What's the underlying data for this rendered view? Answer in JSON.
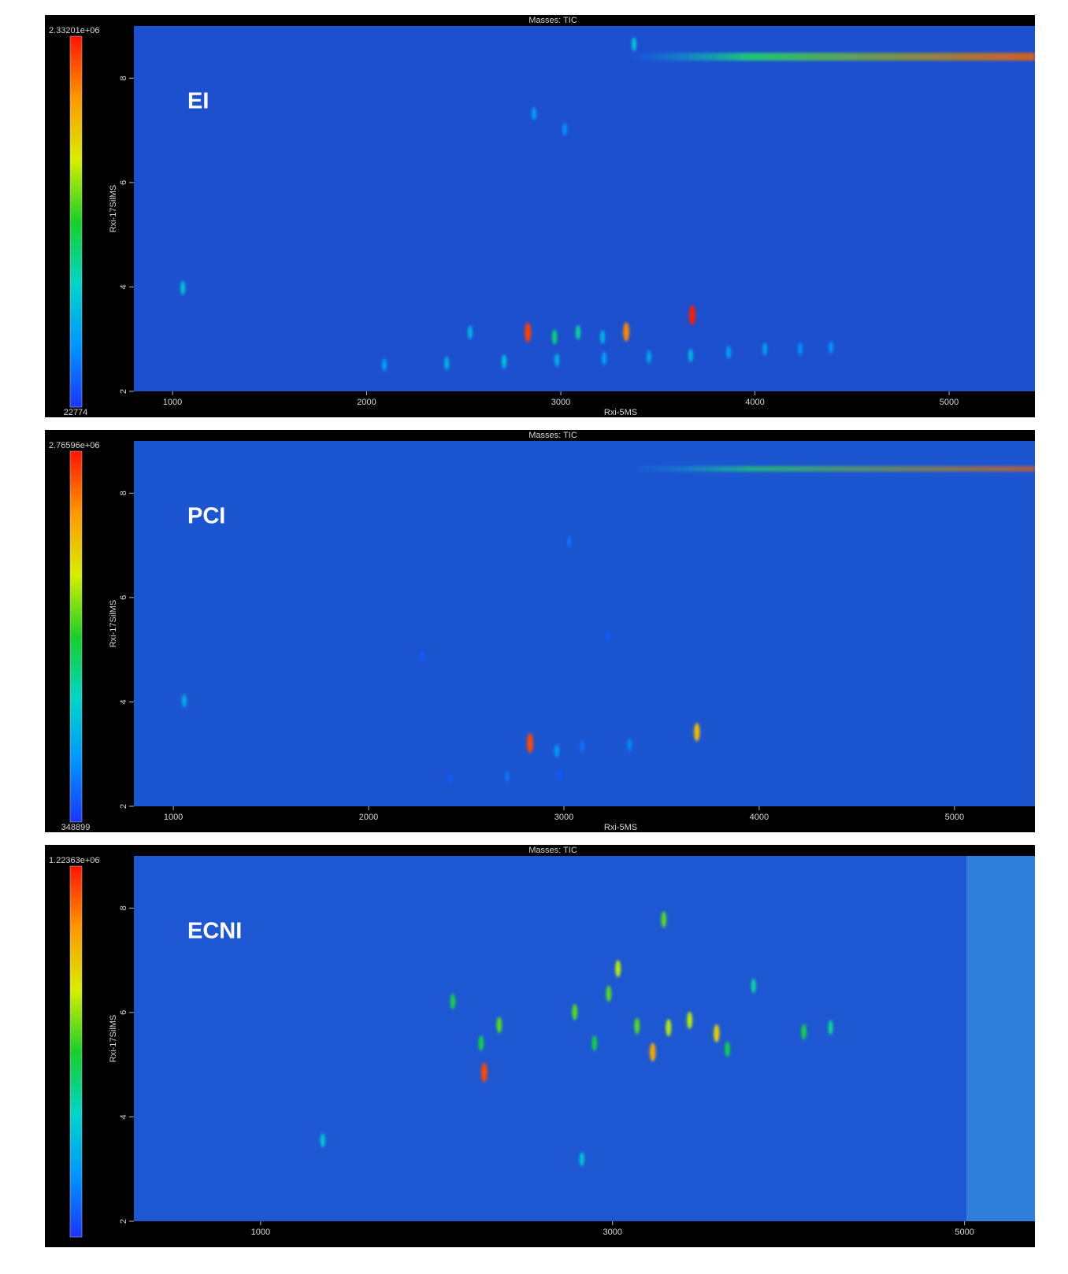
{
  "chart_data": [
    {
      "type": "heatmap",
      "title": "Masses: TIC",
      "x_label": "Rxi-5MS",
      "y_label": "Rxi-17SilMS",
      "annotation": "EI",
      "background": "#1c50cf",
      "colormap": [
        "#1a35ff",
        "#0096ff",
        "#00d6c8",
        "#18d028",
        "#d8ee00",
        "#ff9800",
        "#ff1400"
      ],
      "zlim": [
        22774,
        2332010
      ],
      "zticks": [
        22774,
        {
          "value": 2332010,
          "label": "2.33201e+06"
        }
      ],
      "xlim": [
        801,
        5442
      ],
      "xticks": [
        1000,
        2000,
        3000,
        4000,
        5000
      ],
      "ylim": [
        2,
        9
      ],
      "yticks": [
        2,
        4,
        6,
        8
      ],
      "x": [
        2830,
        3337,
        3677,
        2968,
        3089,
        2533,
        3215,
        2708,
        2412,
        2091,
        2980,
        3223,
        3454,
        3669,
        3864,
        4051,
        4233,
        4391,
        1053,
        2862,
        3020,
        3377
      ],
      "y": [
        3.13,
        3.14,
        3.46,
        3.04,
        3.13,
        3.13,
        3.04,
        2.57,
        2.54,
        2.51,
        2.6,
        2.63,
        2.66,
        2.69,
        2.75,
        2.81,
        2.81,
        2.84,
        3.98,
        7.32,
        7.02,
        8.65
      ],
      "values": [
        2200000,
        2000000,
        2300000,
        1000000,
        900000,
        600000,
        600000,
        700000,
        600000,
        500000,
        600000,
        500000,
        500000,
        600000,
        500000,
        500000,
        400000,
        400000,
        700000,
        500000,
        400000,
        700000
      ]
    },
    {
      "type": "heatmap",
      "title": "Masses: TIC",
      "x_label": "Rxi-5MS",
      "y_label": "Rxi-17SilMS",
      "annotation": "PCI",
      "background": "#1c55d0",
      "colormap": [
        "#1a35ff",
        "#0096ff",
        "#00d6c8",
        "#18d028",
        "#d8ee00",
        "#ff9800",
        "#ff1400"
      ],
      "zlim": [
        348899,
        2765960
      ],
      "zticks": [
        348899,
        {
          "value": 2765960,
          "label": "2.76596e+06"
        }
      ],
      "xlim": [
        798,
        5412
      ],
      "xticks": [
        1000,
        2000,
        3000,
        4000,
        5000
      ],
      "ylim": [
        2,
        9
      ],
      "yticks": [
        2,
        4,
        6,
        8
      ],
      "x": [
        2827,
        3681,
        2964,
        3093,
        3335,
        1056,
        3028,
        2710,
        2415,
        2980,
        2274,
        3226
      ],
      "y": [
        3.21,
        3.42,
        3.06,
        3.15,
        3.18,
        4.02,
        7.07,
        2.57,
        2.54,
        2.6,
        4.87,
        5.26
      ],
      "values": [
        2600000,
        2200000,
        800000,
        600000,
        700000,
        900000,
        600000,
        600000,
        500000,
        500000,
        500000,
        500000
      ]
    },
    {
      "type": "heatmap",
      "title": "Masses: TIC",
      "y_label": "Rxi-17SilMS",
      "annotation": "ECNI",
      "background": "#1d58d2",
      "colormap": [
        "#1a35ff",
        "#0096ff",
        "#00d6c8",
        "#18d028",
        "#d8ee00",
        "#ff9800",
        "#ff1400"
      ],
      "zlim": [
        50000,
        1223630
      ],
      "zticks": [
        {
          "value": 1223630,
          "label": "1.22363e+06"
        }
      ],
      "xlim": [
        280,
        5400
      ],
      "xticks": [
        1000,
        3000,
        5000
      ],
      "ylim": [
        2,
        9
      ],
      "yticks": [
        2,
        4,
        6,
        8
      ],
      "x": [
        2271,
        3228,
        3591,
        3318,
        3438,
        3291,
        3031,
        2356,
        2253,
        2092,
        2785,
        2978,
        3139,
        2897,
        4087,
        4239,
        3653,
        2826,
        1353,
        3801
      ],
      "y": [
        4.85,
        5.24,
        5.6,
        5.71,
        5.85,
        7.78,
        6.84,
        5.76,
        5.41,
        6.21,
        6.01,
        6.36,
        5.74,
        5.41,
        5.63,
        5.71,
        5.3,
        3.19,
        3.55,
        6.51
      ],
      "values": [
        1150000,
        1000000,
        900000,
        800000,
        800000,
        700000,
        800000,
        700000,
        600000,
        600000,
        700000,
        700000,
        700000,
        600000,
        600000,
        500000,
        600000,
        400000,
        400000,
        500000
      ]
    }
  ]
}
